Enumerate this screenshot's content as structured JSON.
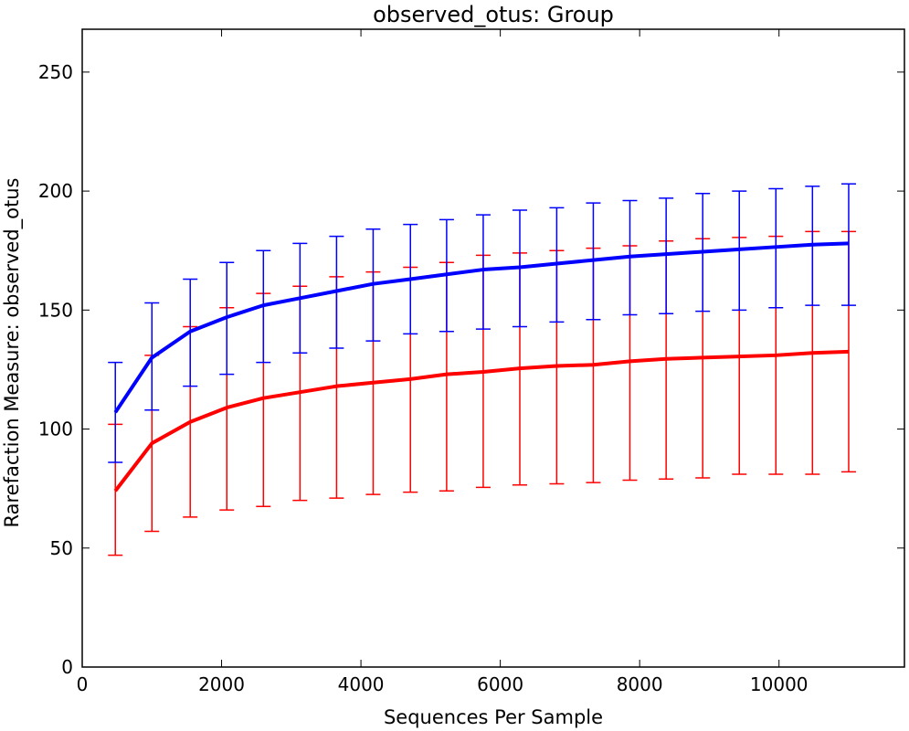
{
  "chart_data": {
    "type": "line",
    "title": "observed_otus: Group",
    "xlabel": "Sequences Per Sample",
    "ylabel": "Rarefaction Measure: observed_otus",
    "xlim": [
      0,
      11800
    ],
    "ylim": [
      0,
      268
    ],
    "xticks": [
      0,
      2000,
      4000,
      6000,
      8000,
      10000
    ],
    "xtick_labels": [
      "0",
      "2000",
      "4000",
      "6000",
      "8000",
      "10000"
    ],
    "yticks": [
      0,
      50,
      100,
      150,
      200,
      250
    ],
    "ytick_labels": [
      "0",
      "50",
      "100",
      "150",
      "200",
      "250"
    ],
    "grid": false,
    "legend": null,
    "x": [
      475,
      1000,
      1550,
      2075,
      2600,
      3125,
      3650,
      4175,
      4710,
      5230,
      5755,
      6280,
      6810,
      7335,
      7860,
      8380,
      8905,
      9430,
      9955,
      10480,
      11000
    ],
    "series": [
      {
        "color": "#0000ff",
        "values": [
          107,
          130,
          141,
          147,
          152,
          155,
          158,
          161,
          163,
          165,
          167,
          168,
          169.5,
          171,
          172.5,
          173.5,
          174.5,
          175.5,
          176.5,
          177.5,
          178
        ],
        "err_upper": [
          128,
          153,
          163,
          170,
          175,
          178,
          181,
          184,
          186,
          188,
          190,
          192,
          193,
          195,
          196,
          197,
          199,
          200,
          201,
          202,
          203
        ],
        "err_lower": [
          86,
          108,
          118,
          123,
          128,
          132,
          134,
          137,
          140,
          141,
          142,
          143,
          145,
          146,
          148,
          148.5,
          149.5,
          150,
          151,
          152,
          152
        ]
      },
      {
        "color": "#ff0000",
        "values": [
          74,
          94,
          103,
          109,
          113,
          115.5,
          118,
          119.5,
          121,
          123,
          124,
          125.5,
          126.5,
          127,
          128.5,
          129.5,
          130,
          130.5,
          131,
          132,
          132.5
        ],
        "err_upper": [
          102,
          131,
          143,
          151,
          157,
          160,
          164,
          166,
          168,
          170,
          173,
          174,
          175,
          176,
          177,
          179,
          180,
          180.5,
          181,
          183,
          183
        ],
        "err_lower": [
          47,
          57,
          63,
          66,
          67.5,
          70,
          71,
          72.5,
          73.5,
          74,
          75.5,
          76.5,
          77,
          77.5,
          78.5,
          79,
          79.5,
          81,
          81,
          81,
          82
        ]
      }
    ]
  }
}
